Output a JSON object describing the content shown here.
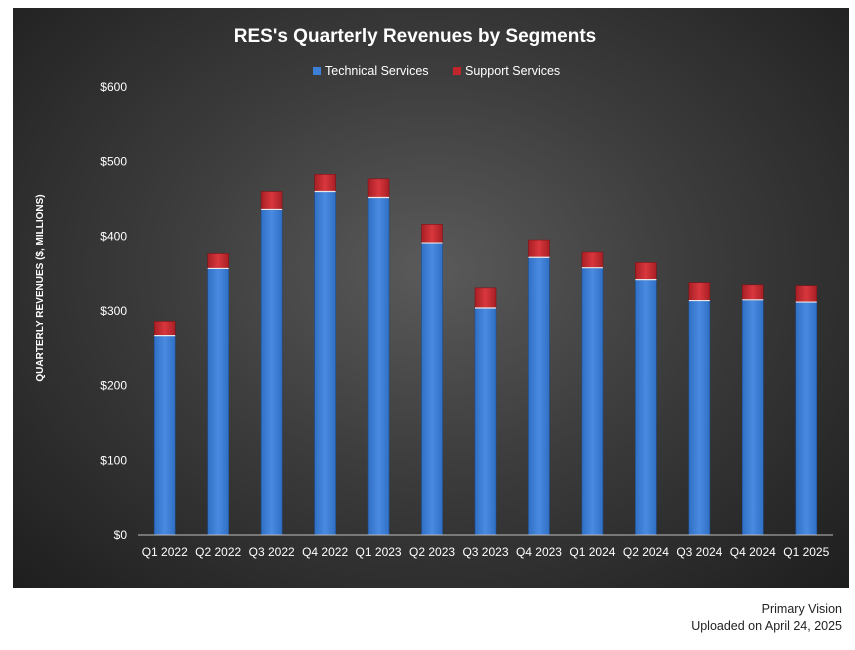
{
  "chart_data": {
    "type": "bar",
    "stacked": true,
    "title": "RES's Quarterly Revenues by Segments",
    "ylabel": "QUARTERLY REVENUES ($, MILLIONS)",
    "xlabel": "",
    "ylim": [
      0,
      600
    ],
    "yticks": [
      "$0",
      "$100",
      "$200",
      "$300",
      "$400",
      "$500",
      "$600"
    ],
    "ytick_values": [
      0,
      100,
      200,
      300,
      400,
      500,
      600
    ],
    "legend_position": "top-center",
    "grid": false,
    "categories": [
      "Q1 2022",
      "Q2 2022",
      "Q3 2022",
      "Q4 2022",
      "Q1 2023",
      "Q2 2023",
      "Q3 2023",
      "Q4 2023",
      "Q1 2024",
      "Q2 2024",
      "Q3 2024",
      "Q4 2024",
      "Q1 2025"
    ],
    "series": [
      {
        "name": "Technical Services",
        "color": "#3d7fd6",
        "values": [
          267,
          357,
          436,
          460,
          452,
          391,
          304,
          372,
          358,
          342,
          314,
          315,
          312
        ]
      },
      {
        "name": "Support Services",
        "color": "#c0272d",
        "values": [
          19,
          20,
          24,
          23,
          25,
          25,
          27,
          23,
          21,
          23,
          24,
          20,
          22
        ]
      }
    ]
  },
  "footer": {
    "source": "Primary Vision",
    "uploaded": "Uploaded on April 24, 2025"
  }
}
